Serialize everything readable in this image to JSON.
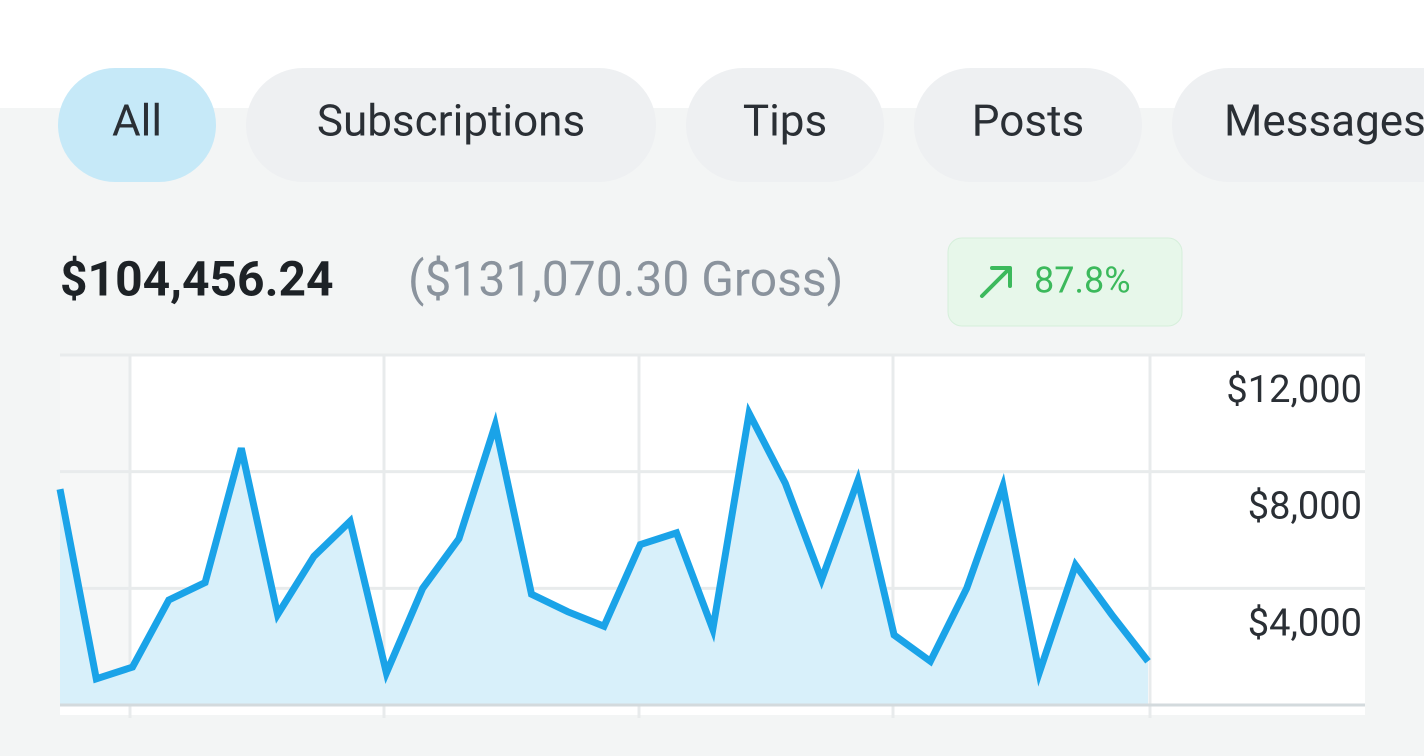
{
  "tabs": [
    "All",
    "Subscriptions",
    "Tips",
    "Posts",
    "Messages"
  ],
  "summary": {
    "net": "$104,456.24",
    "gross": "($131,070.30 Gross)",
    "change": "87.8%"
  },
  "chart_data": {
    "type": "line",
    "values": [
      7400,
      900,
      1300,
      3600,
      4200,
      8800,
      3100,
      5100,
      6300,
      1100,
      4000,
      5700,
      9600,
      3800,
      3200,
      2700,
      5500,
      5900,
      2600,
      10000,
      7600,
      4300,
      7700,
      2400,
      1500,
      4000,
      7500,
      1100,
      4800,
      3100,
      1500
    ],
    "color": "#1aa3e8",
    "ylim": [
      0,
      12000
    ],
    "yticks": [
      {
        "value": 4000,
        "label": "$4,000"
      },
      {
        "value": 8000,
        "label": "$8,000"
      },
      {
        "value": 12000,
        "label": "$12,000"
      }
    ],
    "grid": true
  }
}
